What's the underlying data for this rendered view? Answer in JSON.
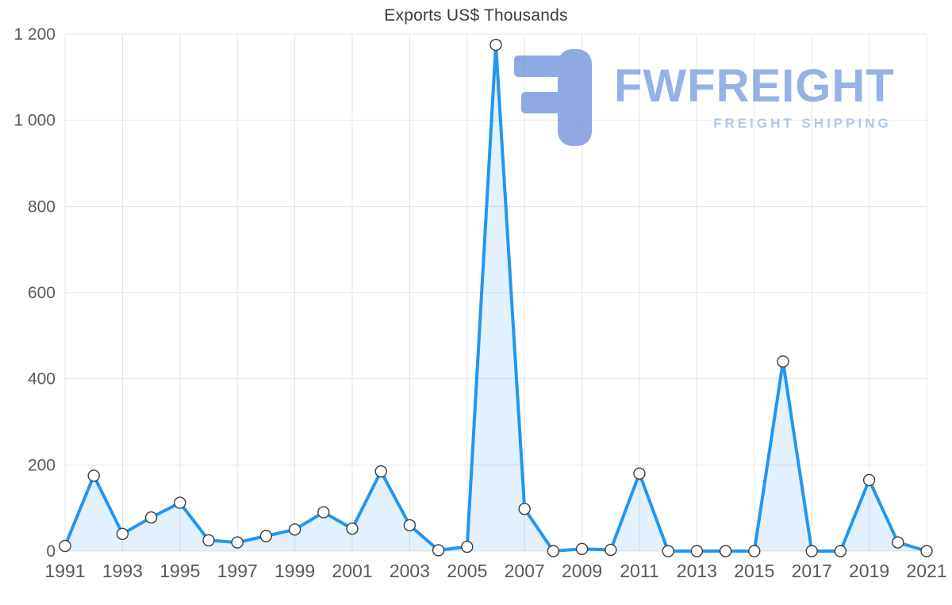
{
  "chart_data": {
    "type": "line",
    "title": "Exports US$ Thousands",
    "xlabel": "",
    "ylabel": "",
    "x": [
      1991,
      1992,
      1993,
      1994,
      1995,
      1996,
      1997,
      1998,
      1999,
      2000,
      2001,
      2002,
      2003,
      2004,
      2005,
      2006,
      2007,
      2008,
      2009,
      2010,
      2011,
      2012,
      2013,
      2014,
      2015,
      2016,
      2017,
      2018,
      2019,
      2020,
      2021
    ],
    "values": [
      12,
      175,
      40,
      78,
      112,
      25,
      20,
      35,
      50,
      90,
      52,
      185,
      60,
      2,
      10,
      1175,
      98,
      0,
      5,
      3,
      180,
      0,
      0,
      0,
      0,
      440,
      0,
      0,
      165,
      20,
      0
    ],
    "x_ticks": [
      1991,
      1993,
      1995,
      1997,
      1999,
      2001,
      2003,
      2005,
      2007,
      2009,
      2011,
      2013,
      2015,
      2017,
      2019,
      2021
    ],
    "x_tick_labels": [
      "1991",
      "1993",
      "1995",
      "1997",
      "1999",
      "2001",
      "2003",
      "2005",
      "2007",
      "2009",
      "2011",
      "2013",
      "2015",
      "2017",
      "2019",
      "2021"
    ],
    "y_ticks": [
      {
        "value": 0,
        "label": "0"
      },
      {
        "value": 200,
        "label": "200"
      },
      {
        "value": 400,
        "label": "400"
      },
      {
        "value": 600,
        "label": "600"
      },
      {
        "value": 800,
        "label": "800"
      },
      {
        "value": 1000,
        "label": "1 000"
      },
      {
        "value": 1200,
        "label": "1 200"
      }
    ],
    "ylim": [
      0,
      1200
    ],
    "grid": true,
    "legend_position": "none",
    "line_color": "#2196f3",
    "fill_color": "#2196f3",
    "fill_opacity": 0.13,
    "marker_fill": "#ffffff",
    "marker_stroke": "#3c3c3c",
    "grid_color": "#e4e4e4",
    "axis_label_color": "#5a5a5a"
  },
  "watermark": {
    "brand": "FWFREIGHT",
    "tagline": "FREIGHT SHIPPING",
    "logo_color": "#6f92dc"
  }
}
